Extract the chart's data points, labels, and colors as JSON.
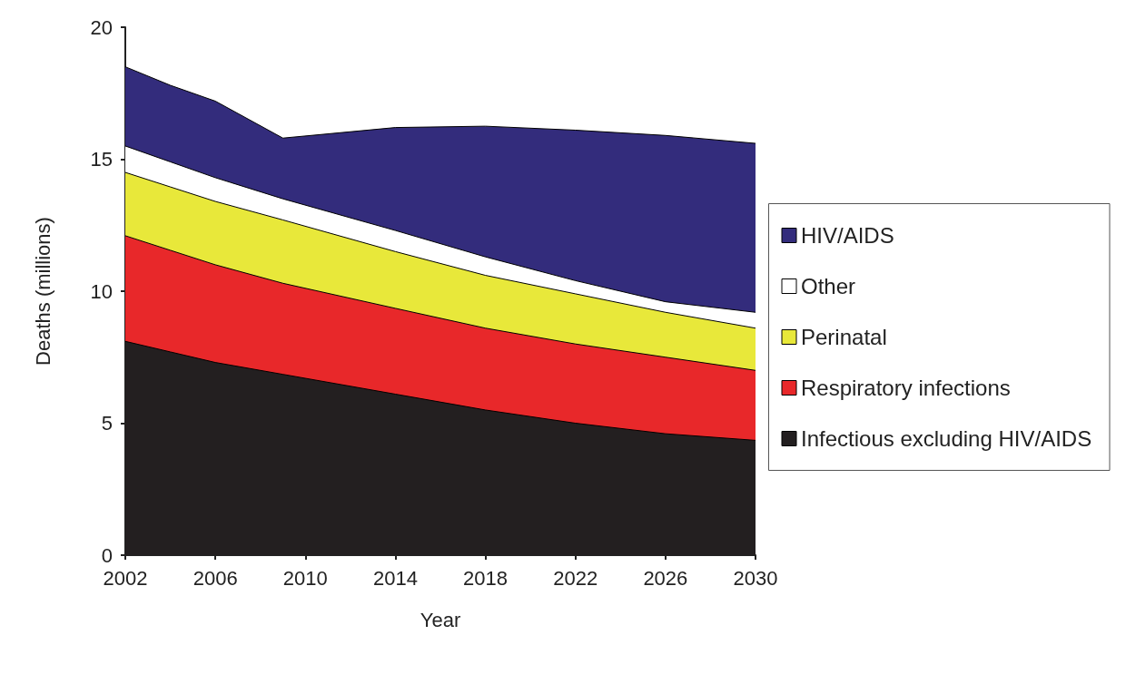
{
  "chart_data": {
    "type": "area",
    "stacked": true,
    "xlabel": "Year",
    "ylabel": "Deaths (millions)",
    "x": [
      2002,
      2004,
      2006,
      2009,
      2014,
      2018,
      2022,
      2026,
      2030
    ],
    "series": [
      {
        "name": "Infectious excluding HIV/AIDS",
        "color": "#231f20",
        "values": [
          8.1,
          7.7,
          7.3,
          6.85,
          6.1,
          5.5,
          5.0,
          4.6,
          4.35
        ]
      },
      {
        "name": "Respiratory infections",
        "color": "#e8282a",
        "values": [
          4.0,
          3.85,
          3.7,
          3.45,
          3.25,
          3.1,
          3.0,
          2.9,
          2.65
        ]
      },
      {
        "name": "Perinatal",
        "color": "#e8e83a",
        "values": [
          2.4,
          2.4,
          2.4,
          2.4,
          2.15,
          2.0,
          1.9,
          1.7,
          1.6
        ]
      },
      {
        "name": "Other",
        "color": "#ffffff",
        "values": [
          1.0,
          0.95,
          0.9,
          0.8,
          0.8,
          0.7,
          0.5,
          0.4,
          0.6
        ]
      },
      {
        "name": "HIV/AIDS",
        "color": "#332c7c",
        "values": [
          3.0,
          2.9,
          2.9,
          2.3,
          3.9,
          4.95,
          5.7,
          6.3,
          6.4
        ]
      }
    ],
    "xlim": [
      2002,
      2030
    ],
    "xticks": [
      2002,
      2006,
      2010,
      2014,
      2018,
      2022,
      2026,
      2030
    ],
    "ylim": [
      0,
      20
    ],
    "yticks": [
      0,
      5,
      10,
      15,
      20
    ],
    "grid": false,
    "legend": "right"
  }
}
